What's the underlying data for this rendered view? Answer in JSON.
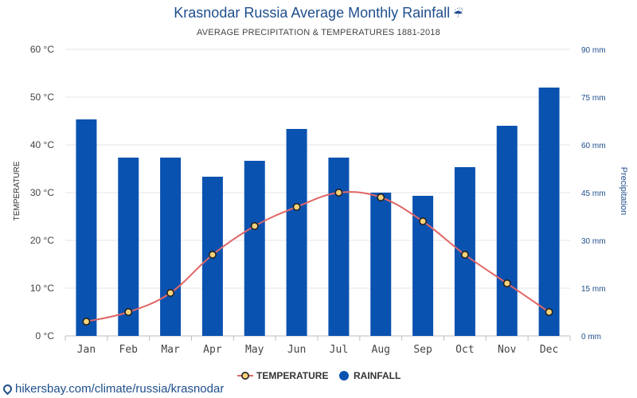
{
  "title": "Krasnodar Russia Average Monthly Rainfall",
  "title_icon": "umbrella-rain-icon",
  "subtitle": "AVERAGE PRECIPITATION & TEMPERATURES 1881-2018",
  "footer_link": "hikersbay.com/climate/russia/krasnodar",
  "colors": {
    "rainfall": "#0a52b0",
    "temperature": "#e06666",
    "title": "#1f4e8c",
    "right_axis": "#1f4e8c"
  },
  "chart_data": {
    "type": "bar",
    "categories": [
      "Jan",
      "Feb",
      "Mar",
      "Apr",
      "May",
      "Jun",
      "Jul",
      "Aug",
      "Sep",
      "Oct",
      "Nov",
      "Dec"
    ],
    "ylabel_left": "TEMPERATURE",
    "ylabel_right": "Precipitation",
    "yleft_lim": [
      0,
      60
    ],
    "yleft_ticks": [
      "0 °C",
      "10 °C",
      "20 °C",
      "30 °C",
      "40 °C",
      "50 °C",
      "60 °C"
    ],
    "yright_lim": [
      0,
      90
    ],
    "yright_ticks": [
      "0 mm",
      "15 mm",
      "30 mm",
      "45 mm",
      "60 mm",
      "75 mm",
      "90 mm"
    ],
    "grid": true,
    "legend_position": "bottom",
    "series": [
      {
        "name": "TEMPERATURE",
        "type": "line",
        "axis": "left",
        "values": [
          3,
          5,
          9,
          17,
          23,
          27,
          30,
          29,
          24,
          17,
          11,
          5
        ]
      },
      {
        "name": "RAINFALL",
        "type": "bar",
        "axis": "right",
        "values": [
          68,
          56,
          56,
          50,
          55,
          65,
          56,
          45,
          44,
          53,
          66,
          78
        ]
      }
    ]
  }
}
